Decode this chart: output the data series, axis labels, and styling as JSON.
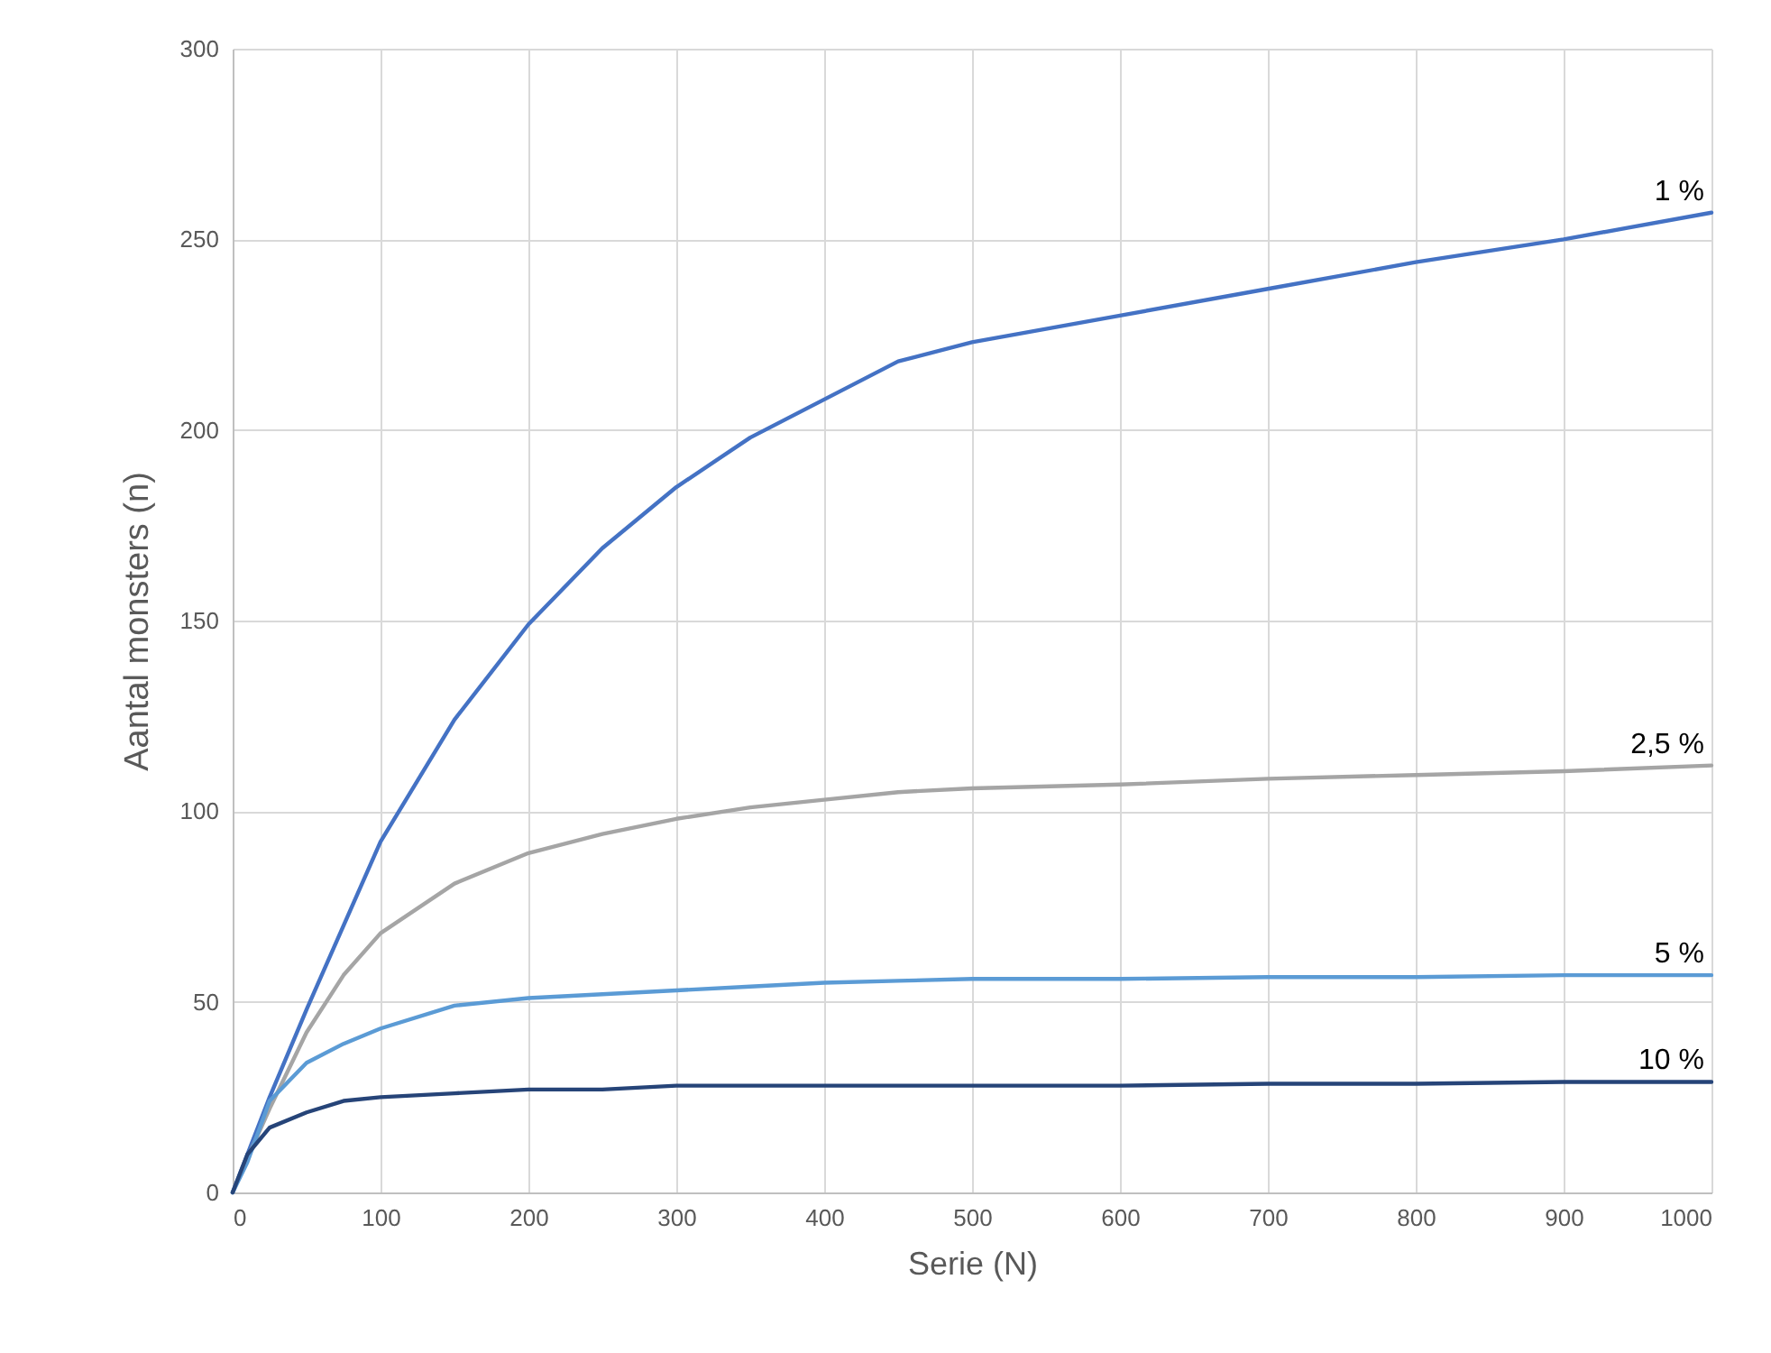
{
  "chart_data": {
    "type": "line",
    "xlabel": "Serie (N)",
    "ylabel": "Aantal monsters (n)",
    "x": [
      0,
      10,
      25,
      50,
      75,
      100,
      150,
      200,
      250,
      300,
      350,
      400,
      450,
      500,
      600,
      700,
      800,
      900,
      1000
    ],
    "series": [
      {
        "name": "1 %",
        "color": "#4472c4",
        "values": [
          0,
          10,
          25,
          48,
          70,
          92,
          124,
          149,
          169,
          185,
          198,
          208,
          218,
          223,
          230,
          237,
          244,
          250,
          257
        ]
      },
      {
        "name": "2,5 %",
        "color": "#a5a5a5",
        "values": [
          0,
          9,
          22,
          42,
          57,
          68,
          81,
          89,
          94,
          98,
          101,
          103,
          105,
          106,
          107,
          108.5,
          109.5,
          110.5,
          112
        ]
      },
      {
        "name": "5 %",
        "color": "#5b9bd5",
        "values": [
          0,
          8,
          24,
          34,
          39,
          43,
          49,
          51,
          52,
          53,
          54,
          55,
          55.5,
          56,
          56,
          56.5,
          56.5,
          57,
          57
        ]
      },
      {
        "name": "10 %",
        "color": "#264478",
        "values": [
          0,
          10,
          17,
          21,
          24,
          25,
          26,
          27,
          27,
          28,
          28,
          28,
          28,
          28,
          28,
          28.5,
          28.5,
          29,
          29
        ]
      }
    ],
    "xlim": [
      0,
      1000
    ],
    "xticks": [
      0,
      100,
      200,
      300,
      400,
      500,
      600,
      700,
      800,
      900,
      1000
    ],
    "ylim": [
      0,
      300
    ],
    "yticks": [
      0,
      50,
      100,
      150,
      200,
      250,
      300
    ],
    "grid": true,
    "marker": "none",
    "line_style": "solid"
  }
}
